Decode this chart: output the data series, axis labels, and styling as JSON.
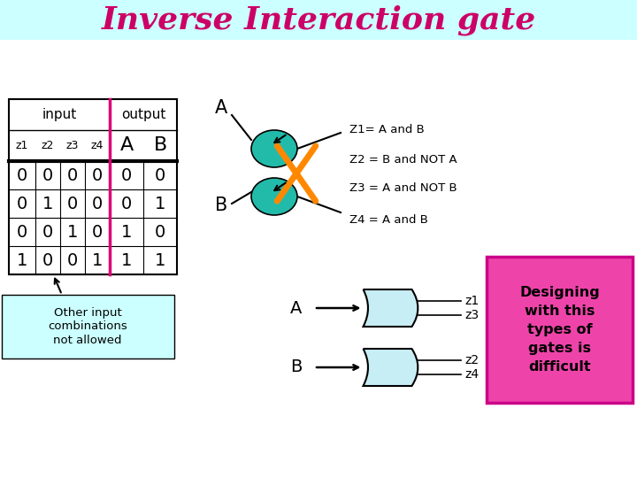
{
  "title": "Inverse Interaction gate",
  "title_color": "#cc0066",
  "title_fontsize": 26,
  "bg_color": "#ffffff",
  "header_bg": "#ccffff",
  "table_rows": [
    [
      0,
      0,
      0,
      0,
      0,
      0
    ],
    [
      0,
      1,
      0,
      0,
      0,
      1
    ],
    [
      0,
      0,
      1,
      0,
      1,
      0
    ],
    [
      1,
      0,
      0,
      1,
      1,
      1
    ]
  ],
  "col_headers": [
    "z1",
    "z2",
    "z3",
    "z4",
    "A",
    "B"
  ],
  "group_headers": [
    "input",
    "output"
  ],
  "z_labels": [
    "Z1= A and B",
    "Z2 = B and NOT A",
    "Z3 = A and NOT B",
    "Z4 = A and B"
  ],
  "other_input_text": "Other input\ncombinations\nnot allowed",
  "other_input_bg": "#ccffff",
  "designing_text": "Designing\nwith this\ntypes of\ngates is\ndifficult",
  "designing_bg": "#ee44aa",
  "teal_color": "#22bbaa",
  "orange_color": "#ff8800",
  "gate_fill": "#c8eef5"
}
